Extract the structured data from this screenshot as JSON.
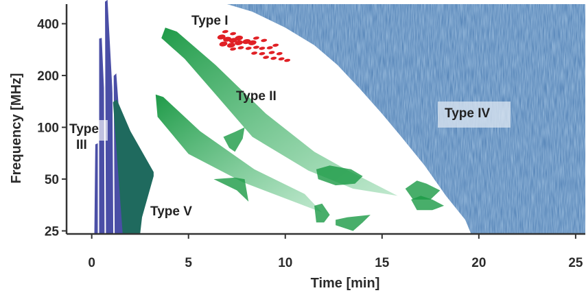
{
  "chart_data": {
    "type": "spectrogram",
    "xlabel": "Time [min]",
    "ylabel": "Frequency [MHz]",
    "x_ticks": [
      0,
      5,
      10,
      15,
      20,
      25
    ],
    "y_ticks": [
      25,
      50,
      100,
      200,
      400
    ],
    "y_scale": "log",
    "xlim": [
      -1.3,
      25.5
    ],
    "ylim": [
      24,
      520
    ],
    "burst_labels": {
      "type1": "Type I",
      "type2": "Type II",
      "type3_line1": "Type",
      "type3_line2": "III",
      "type4": "Type IV",
      "type5": "Type V"
    },
    "colors": {
      "type1": "#e02025",
      "type2": "#1a9a45",
      "type3": "#4a4ea6",
      "type4": "#4f7fb4",
      "type5": "#1f6a5e",
      "axis": "#333333"
    }
  }
}
